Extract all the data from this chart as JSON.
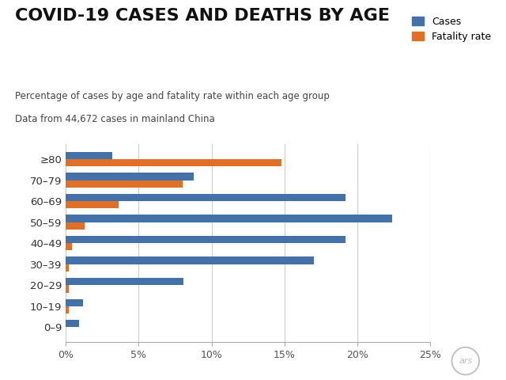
{
  "title": "COVID-19 CASES AND DEATHS BY AGE",
  "subtitle_line1": "Percentage of cases by age and fatality rate within each age group",
  "subtitle_line2": "Data from 44,672 cases in mainland China",
  "age_groups": [
    "0–9",
    "10–19",
    "20–29",
    "30–39",
    "40–49",
    "50–59",
    "60–69",
    "70–79",
    "≥80"
  ],
  "cases": [
    0.9,
    1.2,
    8.1,
    17.0,
    19.2,
    22.4,
    19.2,
    8.8,
    3.2
  ],
  "fatality": [
    0.0,
    0.2,
    0.2,
    0.2,
    0.4,
    1.3,
    3.6,
    8.0,
    14.8
  ],
  "cases_color": "#4472a8",
  "fatality_color": "#e07028",
  "background_color": "#ffffff",
  "title_color": "#111111",
  "subtitle_color": "#444444",
  "xlim": [
    0,
    25
  ],
  "xtick_positions": [
    0,
    5,
    10,
    15,
    20,
    25
  ],
  "xtick_labels": [
    "0%",
    "5%",
    "10%",
    "15%",
    "20%",
    "25%"
  ],
  "bar_height": 0.35,
  "legend_cases": "Cases",
  "legend_fatality": "Fatality rate",
  "ars_watermark": "ars"
}
